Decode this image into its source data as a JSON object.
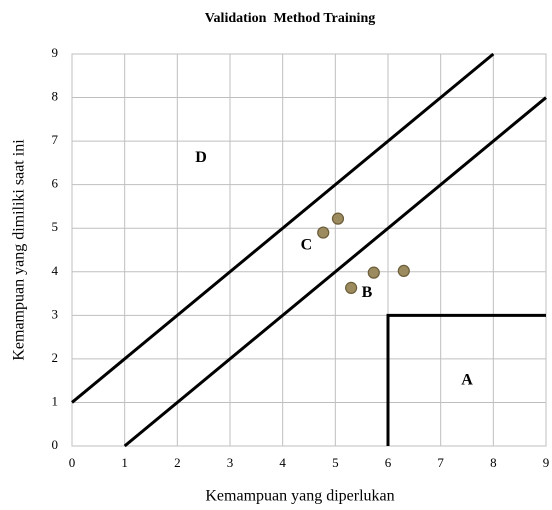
{
  "chart_data": {
    "type": "scatter",
    "title": "Validation  Method Training",
    "xlabel": "Kemampuan yang diperlukan",
    "ylabel": "Kemampuan yang dimiliki saat ini",
    "x": [
      5.05,
      4.77,
      5.73,
      6.3,
      5.3
    ],
    "values": [
      5.22,
      4.9,
      3.98,
      4.02,
      3.63
    ],
    "color": "#9c8b5e",
    "xlim": [
      0,
      9
    ],
    "ylim": [
      0,
      9
    ],
    "xticks": [
      0,
      1,
      2,
      3,
      4,
      5,
      6,
      7,
      8,
      9
    ],
    "yticks": [
      0,
      1,
      2,
      3,
      4,
      5,
      6,
      7,
      8,
      9
    ],
    "grid": true,
    "lines": [
      {
        "x": [
          0,
          8
        ],
        "y": [
          1,
          9
        ]
      },
      {
        "x": [
          1,
          9
        ],
        "y": [
          0,
          8
        ]
      },
      {
        "x": [
          6,
          6,
          9
        ],
        "y": [
          0,
          3,
          3
        ]
      }
    ],
    "annotations": [
      {
        "text": "D",
        "x": 2.45,
        "y": 6.6
      },
      {
        "text": "C",
        "x": 4.45,
        "y": 4.6
      },
      {
        "text": "B",
        "x": 5.6,
        "y": 3.5
      },
      {
        "text": "A",
        "x": 7.5,
        "y": 1.5
      }
    ]
  }
}
